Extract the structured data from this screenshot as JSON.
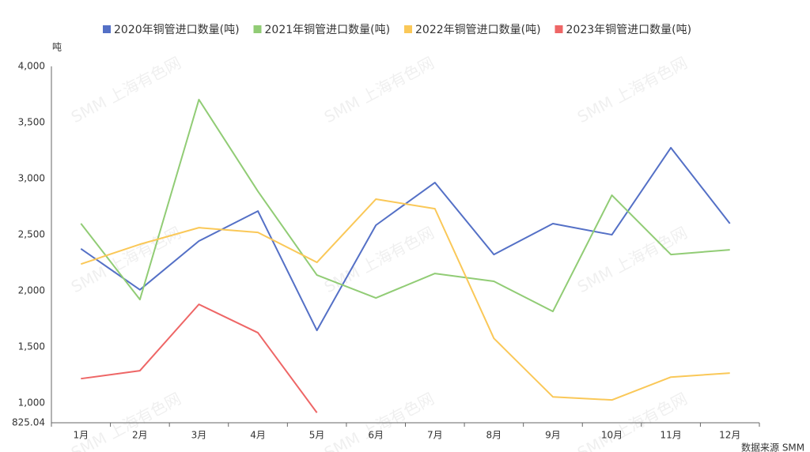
{
  "chart_data": {
    "type": "line",
    "unit_label": "吨",
    "source": "数据来源 SMM",
    "watermark": "SMM 上海有色网",
    "categories": [
      "1月",
      "2月",
      "3月",
      "4月",
      "5月",
      "6月",
      "7月",
      "8月",
      "9月",
      "10月",
      "11月",
      "12月"
    ],
    "series": [
      {
        "name": "2020年铜管进口数量(吨)",
        "color": "#5470c6",
        "values": [
          2375,
          2010,
          2444,
          2711,
          1648,
          2585,
          2965,
          2324,
          2599,
          2500,
          3275,
          2600
        ]
      },
      {
        "name": "2021年铜管进口数量(吨)",
        "color": "#91cc75",
        "values": [
          2600,
          1923,
          3704,
          2887,
          2141,
          1937,
          2155,
          2085,
          1817,
          2852,
          2324,
          2366
        ]
      },
      {
        "name": "2022年铜管进口数量(吨)",
        "color": "#fac858",
        "values": [
          2239,
          2415,
          2563,
          2521,
          2254,
          2817,
          2732,
          1577,
          1056,
          1028,
          1232,
          1268
        ]
      },
      {
        "name": "2023年铜管进口数量(吨)",
        "color": "#ee6666",
        "values": [
          1218,
          1289,
          1880,
          1627,
          915,
          null,
          null,
          null,
          null,
          null,
          null,
          null
        ]
      }
    ],
    "ylim": [
      825.04,
      4000
    ],
    "yticks": [
      825.04,
      {
        "value": 1000,
        "label": "1,000"
      },
      {
        "value": 1500,
        "label": "1,500"
      },
      {
        "value": 2000,
        "label": "2,000"
      },
      {
        "value": 2500,
        "label": "2,500"
      },
      {
        "value": 3000,
        "label": "3,000"
      },
      {
        "value": 3500,
        "label": "3,500"
      },
      {
        "value": 4000,
        "label": "4,000"
      }
    ],
    "grid": false
  }
}
